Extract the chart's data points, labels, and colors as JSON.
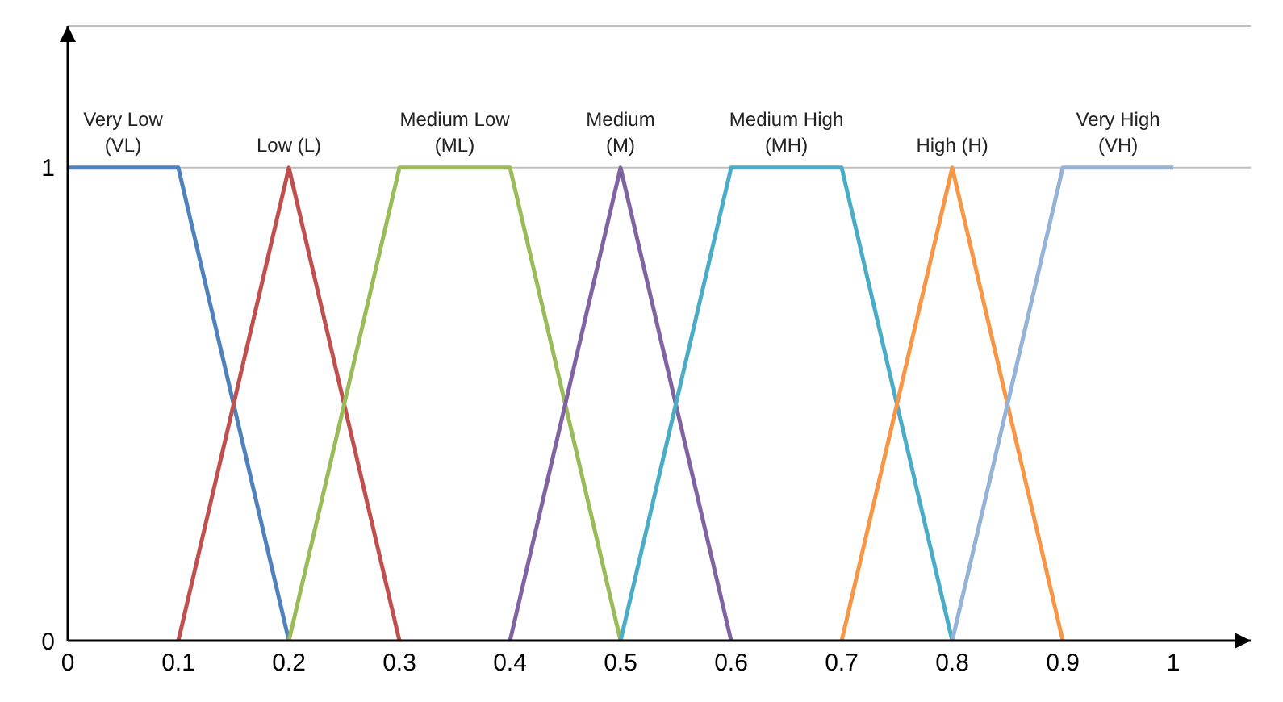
{
  "chart_data": {
    "type": "line",
    "xlim": [
      0,
      1.07
    ],
    "ylim": [
      0,
      1.3
    ],
    "xticks": [
      0,
      0.1,
      0.2,
      0.3,
      0.4,
      0.5,
      0.6,
      0.7,
      0.8,
      0.9,
      1
    ],
    "yticks": [
      0,
      1
    ],
    "grid": "y",
    "marker": "none",
    "line_style": "solid",
    "series": [
      {
        "name": "Very Low (VL)",
        "color": "#4f81bd",
        "x": [
          0,
          0.1,
          0.2
        ],
        "values": [
          1,
          1,
          0
        ]
      },
      {
        "name": "Low (L)",
        "color": "#c0504d",
        "x": [
          0.1,
          0.2,
          0.3
        ],
        "values": [
          0,
          1,
          0
        ]
      },
      {
        "name": "Medium Low (ML)",
        "color": "#9bbb59",
        "x": [
          0.2,
          0.3,
          0.4,
          0.5
        ],
        "values": [
          0,
          1,
          1,
          0
        ]
      },
      {
        "name": "Medium (M)",
        "color": "#8064a2",
        "x": [
          0.4,
          0.5,
          0.6
        ],
        "values": [
          0,
          1,
          0
        ]
      },
      {
        "name": "Medium High (MH)",
        "color": "#4bacc6",
        "x": [
          0.5,
          0.6,
          0.7,
          0.8
        ],
        "values": [
          0,
          1,
          1,
          0
        ]
      },
      {
        "name": "High (H)",
        "color": "#f79646",
        "x": [
          0.7,
          0.8,
          0.9
        ],
        "values": [
          0,
          1,
          0
        ]
      },
      {
        "name": "Very High (VH)",
        "color": "#95b3d7",
        "x": [
          0.8,
          0.9,
          1
        ],
        "values": [
          0,
          1,
          1
        ]
      }
    ]
  }
}
